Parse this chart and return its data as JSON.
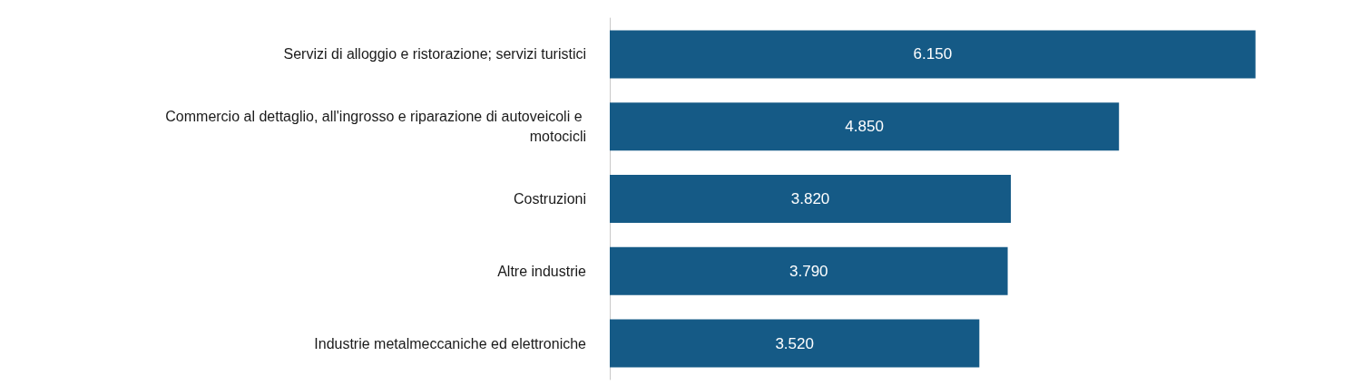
{
  "chart_data": {
    "type": "bar",
    "orientation": "horizontal",
    "categories": [
      "Servizi di alloggio e ristorazione; servizi turistici",
      "Commercio al dettaglio, all'ingrosso e riparazione di autoveicoli e motocicli",
      "Costruzioni",
      "Altre industrie",
      "Industrie metalmeccaniche ed elettroniche"
    ],
    "values": [
      6150,
      4850,
      3820,
      3790,
      3520
    ],
    "value_labels": [
      "6.150",
      "4.850",
      "3.820",
      "3.790",
      "3.520"
    ],
    "color": "#155a86"
  }
}
